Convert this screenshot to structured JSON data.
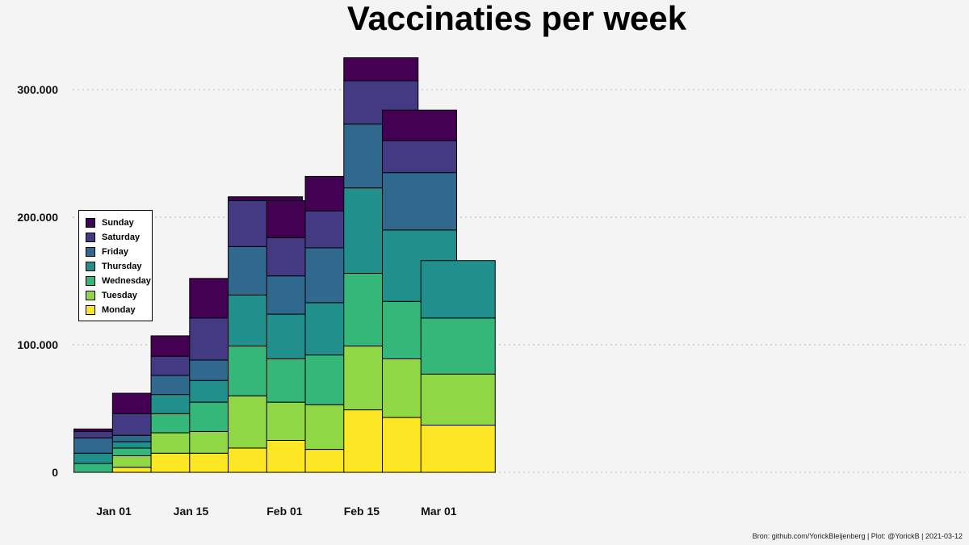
{
  "title": "Vaccinaties per week",
  "caption": "Bron: github.com/YorickBleijenberg | Plot: @YorickB  |  2021-03-12",
  "chart_data": {
    "type": "bar",
    "stacked": true,
    "title": "Vaccinaties per week",
    "xlabel": "",
    "ylabel": "",
    "ylim": [
      0,
      330000
    ],
    "grid": "horizontal dotted",
    "legend_position": "left",
    "x_tick_labels": [
      "Jan 01",
      "Jan 15",
      "Feb 01",
      "Feb 15",
      "Mar 01"
    ],
    "y_ticks": [
      0,
      100000,
      200000,
      300000
    ],
    "y_tick_labels": [
      "0",
      "100.000",
      "200.000",
      "300.000"
    ],
    "categories": [
      "2020-12-28",
      "2021-01-04",
      "2021-01-11",
      "2021-01-18",
      "2021-01-25",
      "2021-02-01",
      "2021-02-08",
      "2021-02-15",
      "2021-02-22",
      "2021-03-01"
    ],
    "series": [
      {
        "name": "Monday",
        "color": "#fde725",
        "values": [
          0,
          4000,
          15000,
          15000,
          19000,
          25000,
          18000,
          49000,
          43000,
          37000
        ]
      },
      {
        "name": "Tuesday",
        "color": "#8fd744",
        "values": [
          0,
          9000,
          16000,
          17000,
          41000,
          30000,
          35000,
          50000,
          46000,
          40000
        ]
      },
      {
        "name": "Wednesday",
        "color": "#35b779",
        "values": [
          7000,
          6000,
          15000,
          23000,
          39000,
          34000,
          39000,
          57000,
          45000,
          44000
        ]
      },
      {
        "name": "Thursday",
        "color": "#21908d",
        "values": [
          8000,
          5000,
          15000,
          17000,
          40000,
          35000,
          41000,
          67000,
          56000,
          45000
        ]
      },
      {
        "name": "Friday",
        "color": "#31688e",
        "values": [
          12000,
          5000,
          15000,
          16000,
          38000,
          30000,
          43000,
          50000,
          45000,
          0
        ]
      },
      {
        "name": "Saturday",
        "color": "#443a83",
        "values": [
          5000,
          17000,
          15000,
          33000,
          36000,
          30000,
          29000,
          34000,
          25000,
          0
        ]
      },
      {
        "name": "Sunday",
        "color": "#440154",
        "values": [
          2000,
          16000,
          16000,
          31000,
          3000,
          29000,
          27000,
          18000,
          24000,
          0
        ]
      }
    ]
  }
}
